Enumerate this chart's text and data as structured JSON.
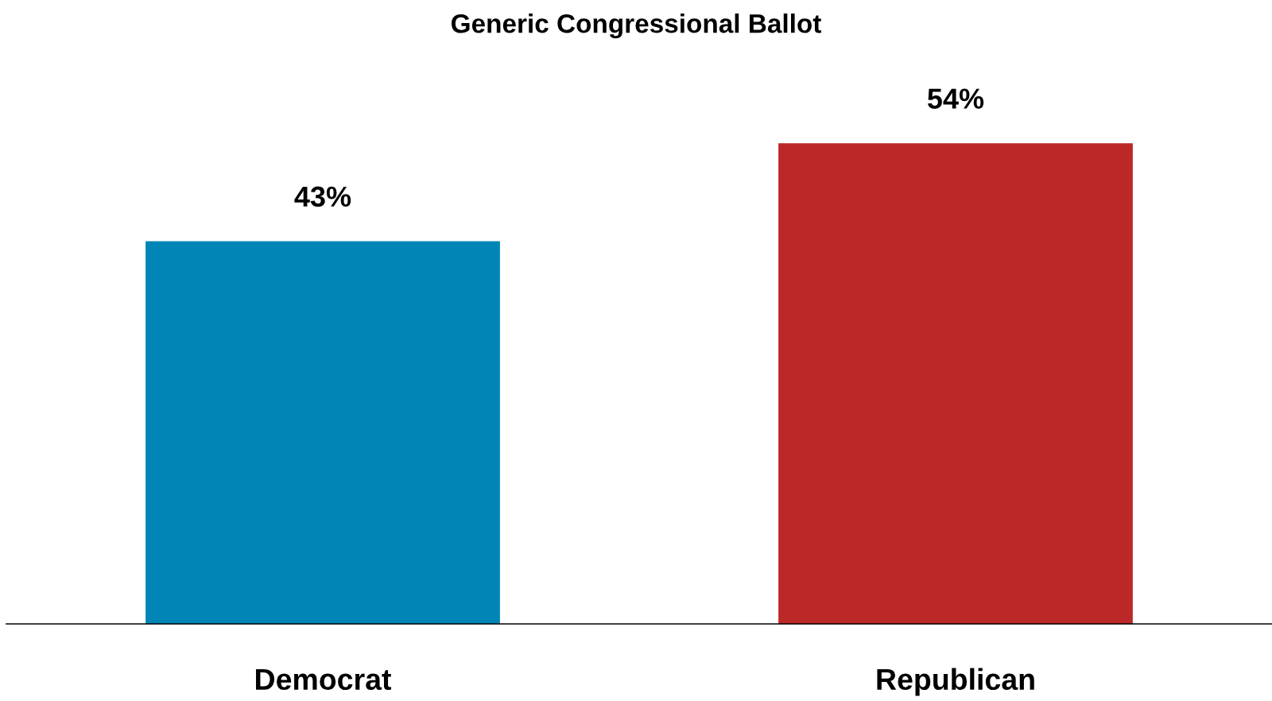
{
  "chart_data": {
    "type": "bar",
    "title": "Generic Congressional Ballot",
    "categories": [
      "Democrat",
      "Republican"
    ],
    "values": [
      43,
      54
    ],
    "colors": [
      "#0085b6",
      "#bc2828"
    ],
    "value_labels": [
      "43%",
      "54%"
    ],
    "tick_labels": "x"
  }
}
